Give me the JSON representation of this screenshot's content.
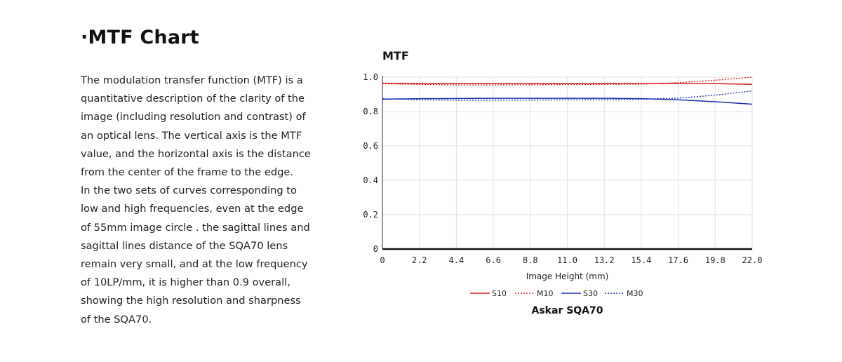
{
  "heading": "·MTF Chart",
  "description_lines": [
    "The modulation transfer function (MTF) is a",
    "quantitative description of the clarity of the",
    "image (including resolution and contrast) of",
    "an optical lens. The vertical axis is the MTF",
    "value, and the horizontal axis is the distance",
    "from the center of the frame to the edge.",
    "In the two sets of curves corresponding to",
    "low and high frequencies, even at the edge",
    "of 55mm image circle . the sagittal lines and",
    "sagittal lines distance of the SQA70 lens",
    "remain very small, and at the low frequency",
    "of 10LP/mm, it is higher than 0.9 overall,",
    "showing the high resolution and sharpness",
    "of the SQA70."
  ],
  "chart_data": {
    "type": "line",
    "title": "MTF",
    "subtitle": "Askar SQA70",
    "xlabel": "Image Height (mm)",
    "ylabel": "",
    "xlim": [
      0,
      22.0
    ],
    "ylim": [
      0,
      1.0
    ],
    "x_ticks": [
      "0",
      "2.2",
      "4.4",
      "6.6",
      "8.8",
      "11.0",
      "13.2",
      "15.4",
      "17.6",
      "19.8",
      "22.0"
    ],
    "y_ticks": [
      "0",
      "0.2",
      "0.4",
      "0.6",
      "0.8",
      "1.0"
    ],
    "grid": true,
    "legend_position": "bottom",
    "x": [
      0,
      2.2,
      4.4,
      6.6,
      8.8,
      11.0,
      13.2,
      15.4,
      17.6,
      19.8,
      22.0
    ],
    "series": [
      {
        "name": "S10",
        "color": "#d32020",
        "style": "solid",
        "values": [
          0.965,
          0.963,
          0.962,
          0.962,
          0.962,
          0.962,
          0.962,
          0.962,
          0.963,
          0.963,
          0.958
        ]
      },
      {
        "name": "M10",
        "color": "#d32020",
        "style": "dotted",
        "values": [
          0.962,
          0.958,
          0.955,
          0.955,
          0.956,
          0.957,
          0.958,
          0.959,
          0.968,
          0.982,
          1.0
        ]
      },
      {
        "name": "S30",
        "color": "#1a2eb0",
        "style": "solid",
        "values": [
          0.872,
          0.875,
          0.876,
          0.877,
          0.877,
          0.877,
          0.877,
          0.875,
          0.868,
          0.857,
          0.843
        ]
      },
      {
        "name": "M30",
        "color": "#1a2eb0",
        "style": "dotted",
        "values": [
          0.875,
          0.868,
          0.866,
          0.866,
          0.867,
          0.868,
          0.869,
          0.872,
          0.878,
          0.895,
          0.92
        ]
      }
    ]
  }
}
